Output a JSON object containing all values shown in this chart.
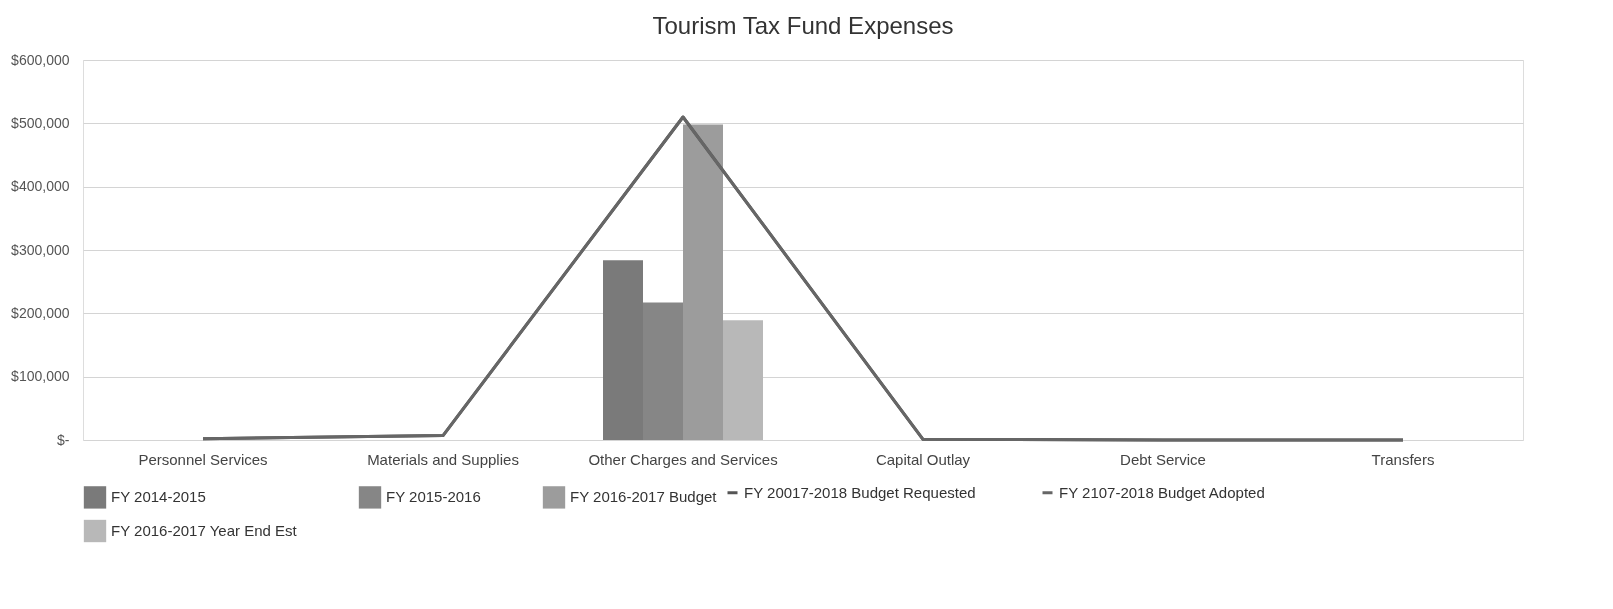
{
  "chart_data": {
    "type": "bar",
    "title": "Tourism Tax Fund Expenses",
    "categories": [
      "Personnel Services",
      "Materials and Supplies",
      "Other Charges and Services",
      "Capital Outlay",
      "Debt Service",
      "Transfers"
    ],
    "series": [
      {
        "name": "FY 2014-2015",
        "color": "#7a7a7a",
        "values": [
          0,
          0,
          284000,
          0,
          0,
          0
        ]
      },
      {
        "name": "FY 2015-2016",
        "color": "#868686",
        "values": [
          0,
          0,
          217000,
          0,
          0,
          0
        ]
      },
      {
        "name": "FY 2016-2017 Budget",
        "color": "#9c9c9c",
        "values": [
          0,
          0,
          498000,
          0,
          0,
          0
        ]
      },
      {
        "name": "FY 2016-2017 Year End Est",
        "color": "#b8b8b8",
        "values": [
          0,
          null,
          189000,
          0,
          0,
          0
        ]
      },
      {
        "name": "FY 20017-2018 Budget Requested",
        "type": "line",
        "color": "#555555",
        "values": [
          2000,
          7000,
          510000,
          1000,
          0,
          0
        ]
      },
      {
        "name": "FY 2107-2018 Budget Adopted",
        "type": "line",
        "color": "#666666",
        "values": [
          2000,
          7000,
          510000,
          1000,
          0,
          0
        ]
      }
    ],
    "ylim": [
      0,
      600000
    ],
    "yticks": [
      {
        "value": 0,
        "label": "$-"
      },
      {
        "value": 100000,
        "label": "$100,000"
      },
      {
        "value": 200000,
        "label": "$200,000"
      },
      {
        "value": 300000,
        "label": "$300,000"
      },
      {
        "value": 400000,
        "label": "$400,000"
      },
      {
        "value": 500000,
        "label": "$500,000"
      },
      {
        "value": 600000,
        "label": "$600,000"
      }
    ],
    "grid": "y",
    "legend": "bottom"
  }
}
